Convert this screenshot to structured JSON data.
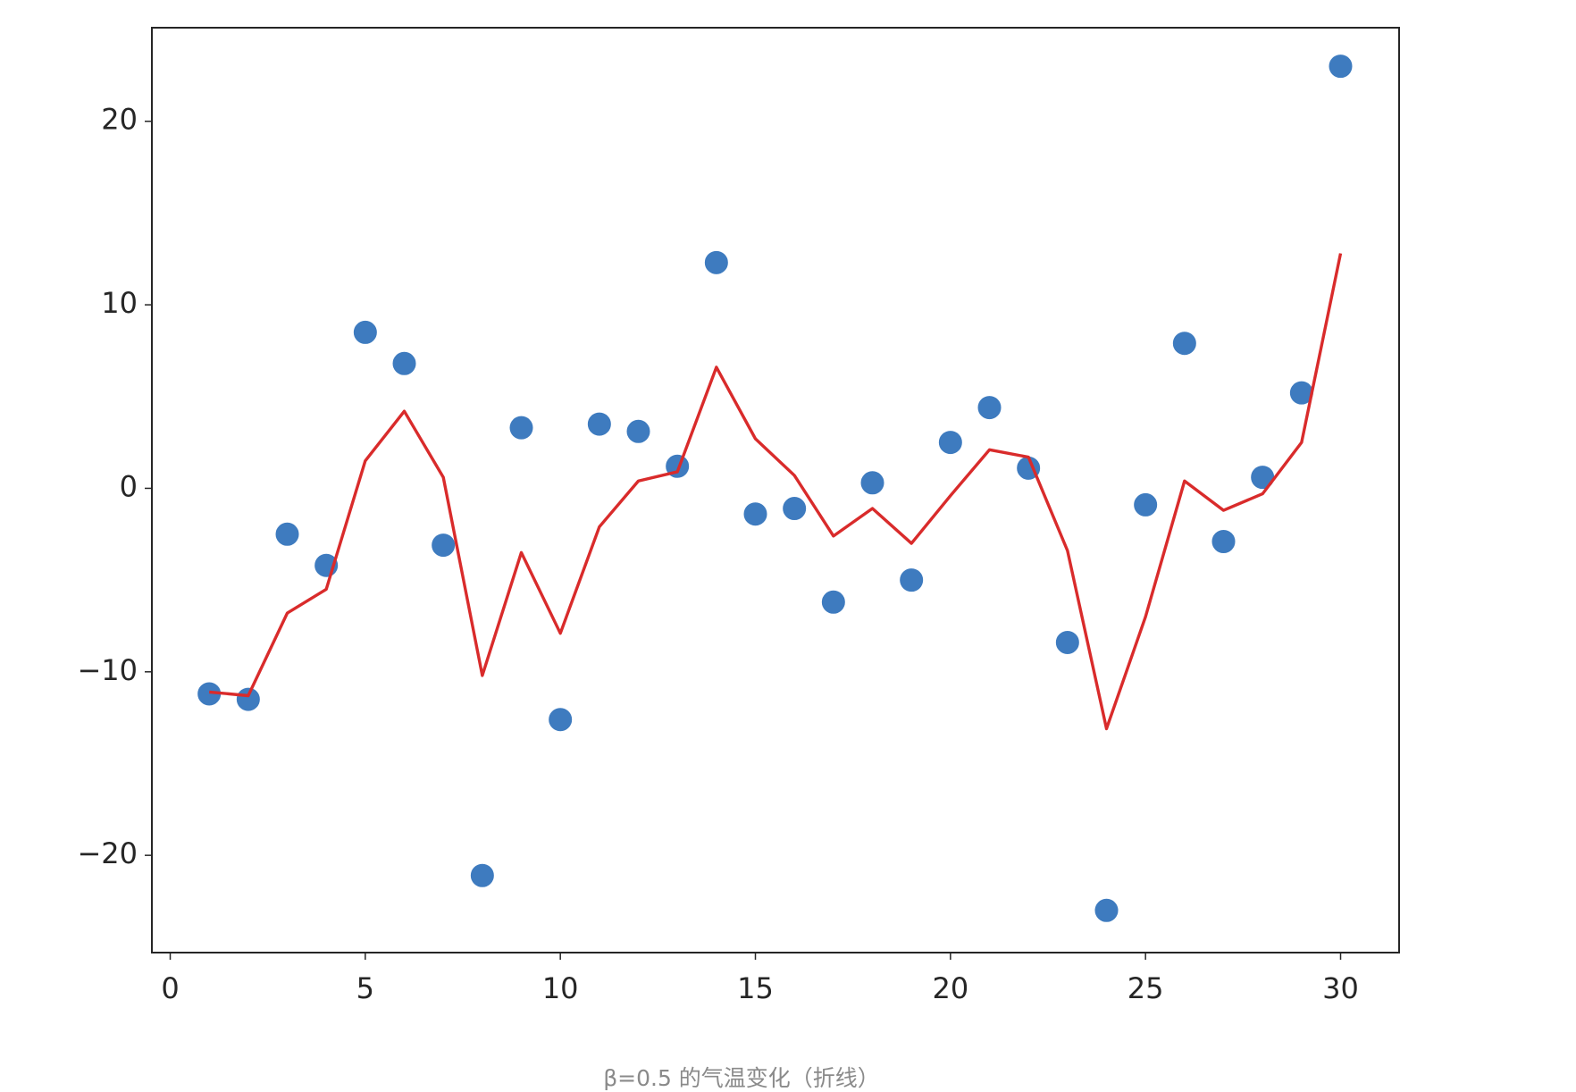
{
  "chart_data": {
    "type": "scatter",
    "caption": "β=0.5 的气温变化（折线）",
    "x": [
      1,
      2,
      3,
      4,
      5,
      6,
      7,
      8,
      9,
      10,
      11,
      12,
      13,
      14,
      15,
      16,
      17,
      18,
      19,
      20,
      21,
      22,
      23,
      24,
      25,
      26,
      27,
      28,
      29,
      30
    ],
    "series": [
      {
        "type": "scatter",
        "color": "#3e7bbf",
        "values": [
          -11.2,
          -11.5,
          -2.5,
          -4.2,
          8.5,
          6.8,
          -3.1,
          -21.1,
          3.3,
          -12.6,
          3.5,
          3.1,
          1.2,
          12.3,
          -1.4,
          -1.1,
          -6.2,
          0.3,
          -5.0,
          2.5,
          4.4,
          1.1,
          -8.4,
          -23.0,
          -0.9,
          7.9,
          -2.9,
          0.6,
          5.2,
          23.0
        ]
      },
      {
        "type": "line",
        "color": "#d92b2b",
        "values": [
          -11.1,
          -11.3,
          -6.8,
          -5.5,
          1.5,
          4.2,
          0.6,
          -10.2,
          -3.5,
          -7.9,
          -2.1,
          0.4,
          0.9,
          6.6,
          2.7,
          0.7,
          -2.6,
          -1.1,
          -3.0,
          -0.4,
          2.1,
          1.7,
          -3.4,
          -13.1,
          -7.0,
          0.4,
          -1.2,
          -0.3,
          2.5,
          12.8
        ]
      }
    ],
    "xlim": [
      -0.47,
      31.5
    ],
    "ylim": [
      -25.3,
      25.1
    ],
    "xticks": [
      0,
      5,
      10,
      15,
      20,
      25,
      30
    ],
    "yticks": [
      {
        "value": -20,
        "label": "−20"
      },
      {
        "value": -10,
        "label": "−10"
      },
      0,
      10,
      20
    ]
  }
}
